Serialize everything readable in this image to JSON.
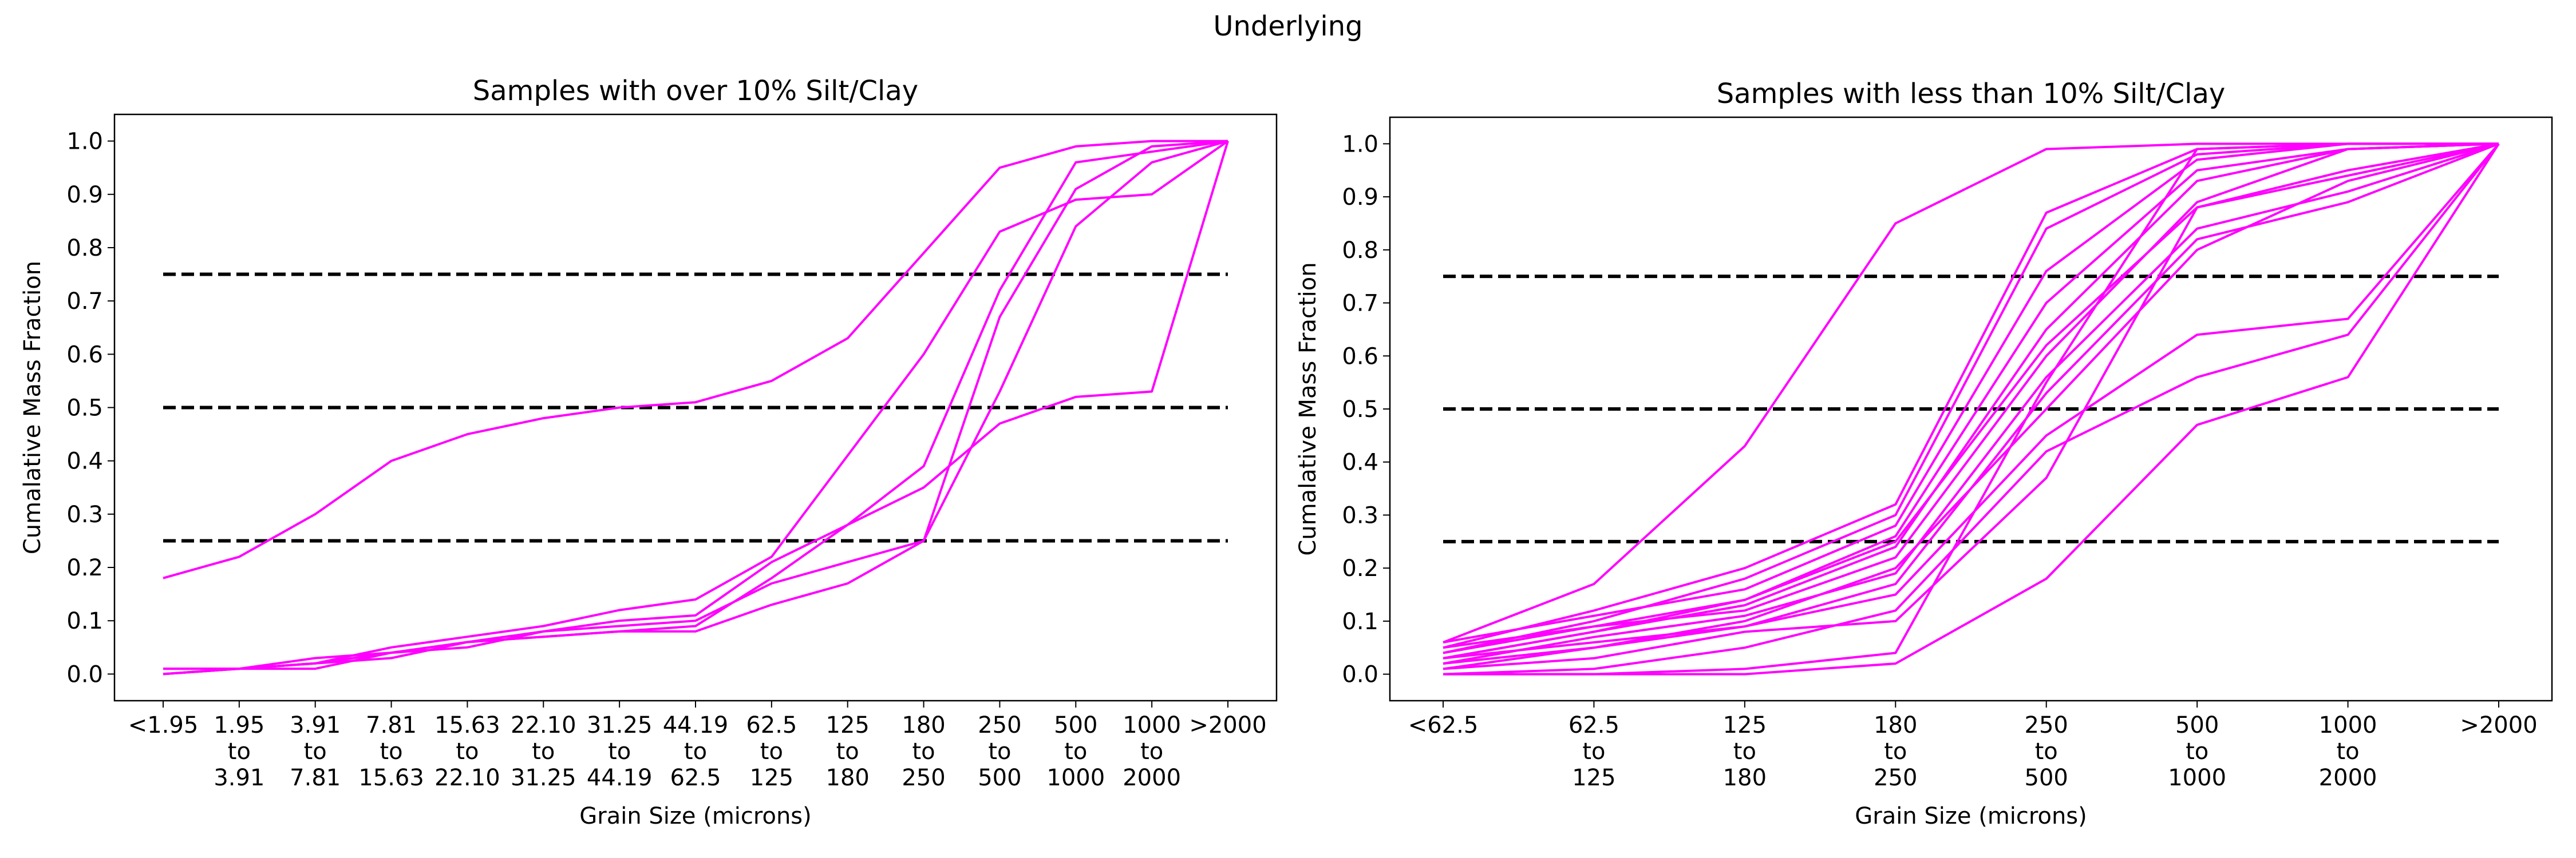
{
  "figure": {
    "title": "Underlying"
  },
  "colors": {
    "series": "#ff00ff",
    "reference": "#000000"
  },
  "chart_data": [
    {
      "type": "line",
      "title": "Samples with over 10% Silt/Clay",
      "xlabel": "Grain Size (microns)",
      "ylabel": "Cumalative Mass Fraction",
      "ylim": [
        -0.05,
        1.05
      ],
      "yticks": [
        "0.0",
        "0.1",
        "0.2",
        "0.3",
        "0.4",
        "0.5",
        "0.6",
        "0.7",
        "0.8",
        "0.9",
        "1.0"
      ],
      "categories": [
        [
          "<1.95"
        ],
        [
          "1.95",
          "to",
          "3.91"
        ],
        [
          "3.91",
          "to",
          "7.81"
        ],
        [
          "7.81",
          "to",
          "15.63"
        ],
        [
          "15.63",
          "to",
          "22.10"
        ],
        [
          "22.10",
          "to",
          "31.25"
        ],
        [
          "31.25",
          "to",
          "44.19"
        ],
        [
          "44.19",
          "to",
          "62.5"
        ],
        [
          "62.5",
          "to",
          "125"
        ],
        [
          "125",
          "to",
          "180"
        ],
        [
          "180",
          "to",
          "250"
        ],
        [
          "250",
          "to",
          "500"
        ],
        [
          "500",
          "to",
          "1000"
        ],
        [
          "1000",
          "to",
          "2000"
        ],
        [
          ">2000"
        ]
      ],
      "reference_lines": [
        0.25,
        0.5,
        0.75
      ],
      "series": [
        {
          "values": [
            0.18,
            0.22,
            0.3,
            0.4,
            0.45,
            0.48,
            0.5,
            0.51,
            0.55,
            0.63,
            0.79,
            0.95,
            0.99,
            1.0,
            1.0
          ]
        },
        {
          "values": [
            0.01,
            0.01,
            0.02,
            0.05,
            0.07,
            0.09,
            0.12,
            0.14,
            0.22,
            0.41,
            0.6,
            0.83,
            0.89,
            0.9,
            1.0
          ]
        },
        {
          "values": [
            0.0,
            0.01,
            0.03,
            0.04,
            0.05,
            0.08,
            0.1,
            0.11,
            0.21,
            0.28,
            0.39,
            0.72,
            0.96,
            0.98,
            1.0
          ]
        },
        {
          "values": [
            0.01,
            0.01,
            0.01,
            0.04,
            0.06,
            0.07,
            0.08,
            0.09,
            0.18,
            0.28,
            0.35,
            0.47,
            0.52,
            0.53,
            1.0
          ]
        },
        {
          "values": [
            0.0,
            0.01,
            0.02,
            0.03,
            0.06,
            0.07,
            0.08,
            0.08,
            0.13,
            0.17,
            0.25,
            0.67,
            0.91,
            0.99,
            1.0
          ]
        },
        {
          "values": [
            0.0,
            0.01,
            0.02,
            0.04,
            0.06,
            0.08,
            0.09,
            0.1,
            0.17,
            0.21,
            0.25,
            0.53,
            0.84,
            0.96,
            1.0
          ]
        }
      ]
    },
    {
      "type": "line",
      "title": "Samples with less than 10% Silt/Clay",
      "xlabel": "Grain Size (microns)",
      "ylabel": "Cumalative Mass Fraction",
      "ylim": [
        -0.05,
        1.05
      ],
      "yticks": [
        "0.0",
        "0.1",
        "0.2",
        "0.3",
        "0.4",
        "0.5",
        "0.6",
        "0.7",
        "0.8",
        "0.9",
        "1.0"
      ],
      "categories": [
        [
          "<62.5"
        ],
        [
          "62.5",
          "to",
          "125"
        ],
        [
          "125",
          "to",
          "180"
        ],
        [
          "180",
          "to",
          "250"
        ],
        [
          "250",
          "to",
          "500"
        ],
        [
          "500",
          "to",
          "1000"
        ],
        [
          "1000",
          "to",
          "2000"
        ],
        [
          ">2000"
        ]
      ],
      "reference_lines": [
        0.25,
        0.5,
        0.75
      ],
      "series": [
        {
          "values": [
            0.06,
            0.17,
            0.43,
            0.85,
            0.99,
            1.0,
            1.0,
            1.0
          ]
        },
        {
          "values": [
            0.05,
            0.12,
            0.2,
            0.32,
            0.87,
            0.99,
            1.0,
            1.0
          ]
        },
        {
          "values": [
            0.04,
            0.1,
            0.18,
            0.3,
            0.84,
            0.98,
            1.0,
            1.0
          ]
        },
        {
          "values": [
            0.06,
            0.11,
            0.16,
            0.28,
            0.76,
            0.97,
            1.0,
            1.0
          ]
        },
        {
          "values": [
            0.04,
            0.09,
            0.14,
            0.26,
            0.7,
            0.95,
            0.99,
            1.0
          ]
        },
        {
          "values": [
            0.03,
            0.08,
            0.13,
            0.24,
            0.65,
            0.93,
            0.99,
            1.0
          ]
        },
        {
          "values": [
            0.05,
            0.09,
            0.12,
            0.22,
            0.6,
            0.89,
            0.99,
            1.0
          ]
        },
        {
          "values": [
            0.03,
            0.08,
            0.14,
            0.25,
            0.62,
            0.88,
            0.94,
            1.0
          ]
        },
        {
          "values": [
            0.02,
            0.07,
            0.11,
            0.19,
            0.56,
            0.84,
            0.91,
            1.0
          ]
        },
        {
          "values": [
            0.03,
            0.06,
            0.09,
            0.17,
            0.53,
            0.82,
            0.89,
            1.0
          ]
        },
        {
          "values": [
            0.01,
            0.05,
            0.1,
            0.2,
            0.5,
            0.8,
            0.93,
            1.0
          ]
        },
        {
          "values": [
            0.02,
            0.05,
            0.09,
            0.15,
            0.45,
            0.64,
            0.67,
            1.0
          ]
        },
        {
          "values": [
            0.0,
            0.01,
            0.05,
            0.12,
            0.42,
            0.56,
            0.64,
            1.0
          ]
        },
        {
          "values": [
            0.01,
            0.03,
            0.08,
            0.1,
            0.37,
            0.88,
            0.95,
            1.0
          ]
        },
        {
          "values": [
            0.0,
            0.0,
            0.01,
            0.04,
            0.55,
            0.99,
            1.0,
            1.0
          ]
        },
        {
          "values": [
            0.0,
            0.0,
            0.0,
            0.02,
            0.18,
            0.47,
            0.56,
            1.0
          ]
        }
      ]
    }
  ]
}
